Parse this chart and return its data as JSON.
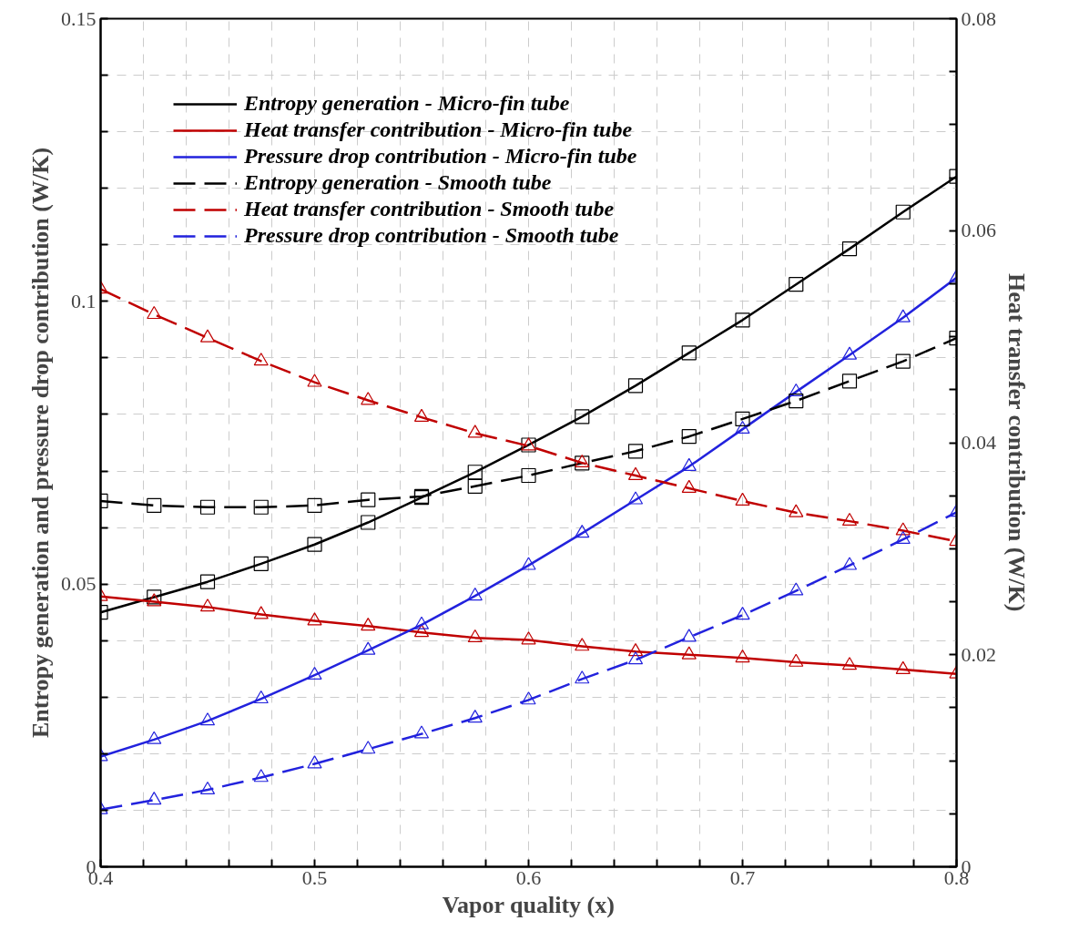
{
  "chart_data": {
    "type": "line",
    "xlabel": "Vapor quality (x)",
    "ylabel": "Entropy generation and pressure drop contribution (W/K)",
    "y2label": "Heat transfer contribution (W/K)",
    "x": [
      0.4,
      0.425,
      0.45,
      0.475,
      0.5,
      0.525,
      0.55,
      0.575,
      0.6,
      0.625,
      0.65,
      0.675,
      0.7,
      0.725,
      0.75,
      0.775,
      0.8
    ],
    "series": [
      {
        "name": "Entropy generation - Micro-fin tube",
        "color": "#000000",
        "line_style": "solid",
        "marker": "square",
        "values": [
          0.045,
          0.0477,
          0.0504,
          0.0536,
          0.057,
          0.0609,
          0.0653,
          0.0698,
          0.0746,
          0.0796,
          0.0851,
          0.0909,
          0.0967,
          0.103,
          0.1093,
          0.1158,
          0.1221
        ]
      },
      {
        "name": "Heat transfer contribution - Micro-fin tube",
        "color": "#c00000",
        "line_style": "solid",
        "marker": "triangle",
        "axis": "y2",
        "values": [
          0.0255,
          0.025,
          0.0245,
          0.0238,
          0.0232,
          0.0227,
          0.0221,
          0.0216,
          0.0214,
          0.0208,
          0.0203,
          0.02,
          0.0197,
          0.0193,
          0.019,
          0.0186,
          0.0182
        ]
      },
      {
        "name": "Pressure drop contribution - Micro-fin tube",
        "color": "#2222dd",
        "line_style": "solid",
        "marker": "triangle",
        "values": [
          0.0195,
          0.0225,
          0.0258,
          0.0297,
          0.0339,
          0.0383,
          0.0428,
          0.0479,
          0.0533,
          0.059,
          0.0649,
          0.0708,
          0.0774,
          0.084,
          0.0905,
          0.0971,
          0.1042
        ]
      },
      {
        "name": "Entropy generation - Smooth tube",
        "color": "#000000",
        "line_style": "dashed",
        "marker": "square",
        "values": [
          0.0647,
          0.0639,
          0.0636,
          0.0636,
          0.0639,
          0.0649,
          0.0655,
          0.0673,
          0.0692,
          0.0714,
          0.0735,
          0.0761,
          0.0792,
          0.0824,
          0.0859,
          0.0894,
          0.0935
        ]
      },
      {
        "name": "Heat transfer contribution - Smooth tube",
        "color": "#c00000",
        "line_style": "dashed",
        "marker": "triangle",
        "axis": "y2",
        "values": [
          0.0545,
          0.0521,
          0.0499,
          0.0477,
          0.0457,
          0.044,
          0.0424,
          0.0409,
          0.0397,
          0.0381,
          0.0369,
          0.0357,
          0.0345,
          0.0334,
          0.0326,
          0.0317,
          0.0307
        ]
      },
      {
        "name": "Pressure drop contribution - Smooth tube",
        "color": "#2222dd",
        "line_style": "dashed",
        "marker": "triangle",
        "values": [
          0.0101,
          0.0118,
          0.0136,
          0.0158,
          0.0182,
          0.0208,
          0.0235,
          0.0263,
          0.0295,
          0.0332,
          0.0366,
          0.0406,
          0.0445,
          0.0488,
          0.0533,
          0.0579,
          0.0627
        ]
      }
    ],
    "xlim": [
      0.4,
      0.8
    ],
    "ylim": [
      0,
      0.15
    ],
    "y2lim": [
      0,
      0.08
    ],
    "xticks": [
      {
        "value": 0.4,
        "label": "0.4"
      },
      {
        "value": 0.42,
        "label": null
      },
      {
        "value": 0.44,
        "label": null
      },
      {
        "value": 0.46,
        "label": null
      },
      {
        "value": 0.48,
        "label": null
      },
      {
        "value": 0.5,
        "label": "0.5"
      },
      {
        "value": 0.52,
        "label": null
      },
      {
        "value": 0.54,
        "label": null
      },
      {
        "value": 0.56,
        "label": null
      },
      {
        "value": 0.58,
        "label": null
      },
      {
        "value": 0.6,
        "label": "0.6"
      },
      {
        "value": 0.62,
        "label": null
      },
      {
        "value": 0.64,
        "label": null
      },
      {
        "value": 0.66,
        "label": null
      },
      {
        "value": 0.68,
        "label": null
      },
      {
        "value": 0.7,
        "label": "0.7"
      },
      {
        "value": 0.72,
        "label": null
      },
      {
        "value": 0.74,
        "label": null
      },
      {
        "value": 0.76,
        "label": null
      },
      {
        "value": 0.78,
        "label": null
      },
      {
        "value": 0.8,
        "label": "0.8"
      }
    ],
    "yticks": [
      0,
      {
        "value": 0.01,
        "label": null
      },
      {
        "value": 0.02,
        "label": null
      },
      {
        "value": 0.03,
        "label": null
      },
      {
        "value": 0.04,
        "label": null
      },
      {
        "value": 0.05,
        "label": "0.05"
      },
      {
        "value": 0.06,
        "label": null
      },
      {
        "value": 0.07,
        "label": null
      },
      {
        "value": 0.08,
        "label": null
      },
      {
        "value": 0.09,
        "label": null
      },
      {
        "value": 0.1,
        "label": "0.1"
      },
      {
        "value": 0.11,
        "label": null
      },
      {
        "value": 0.12,
        "label": null
      },
      {
        "value": 0.13,
        "label": null
      },
      {
        "value": 0.14,
        "label": null
      },
      {
        "value": 0.15,
        "label": "0.15"
      }
    ],
    "y2ticks": [
      0,
      {
        "value": 0.005,
        "label": null
      },
      {
        "value": 0.01,
        "label": null
      },
      {
        "value": 0.015,
        "label": null
      },
      {
        "value": 0.02,
        "label": "0.02"
      },
      {
        "value": 0.025,
        "label": null
      },
      {
        "value": 0.03,
        "label": null
      },
      {
        "value": 0.035,
        "label": null
      },
      {
        "value": 0.04,
        "label": "0.04"
      },
      {
        "value": 0.045,
        "label": null
      },
      {
        "value": 0.05,
        "label": null
      },
      {
        "value": 0.055,
        "label": null
      },
      {
        "value": 0.06,
        "label": "0.06"
      },
      {
        "value": 0.065,
        "label": null
      },
      {
        "value": 0.07,
        "label": null
      },
      {
        "value": 0.075,
        "label": null
      },
      {
        "value": 0.08,
        "label": "0.08"
      }
    ],
    "grid": true,
    "legend": "top left"
  }
}
